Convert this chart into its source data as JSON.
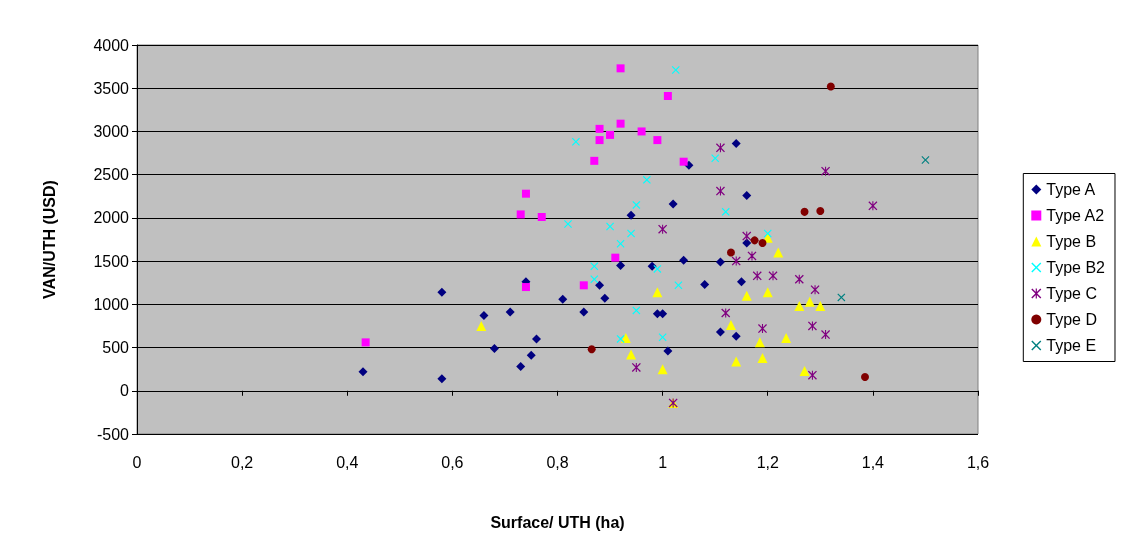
{
  "chart_data": {
    "type": "scatter",
    "xlabel": "Surface/ UTH (ha)",
    "ylabel": "VAN/UTH (USD)",
    "xlim": [
      0,
      1.6
    ],
    "ylim": [
      -500,
      4000
    ],
    "xticks": [
      0,
      {
        "value": 0.2,
        "label": "0,2"
      },
      {
        "value": 0.4,
        "label": "0,4"
      },
      {
        "value": 0.6,
        "label": "0,6"
      },
      {
        "value": 0.8,
        "label": "0,8"
      },
      1,
      {
        "value": 1.2,
        "label": "1,2"
      },
      {
        "value": 1.4,
        "label": "1,4"
      },
      {
        "value": 1.6,
        "label": "1,6"
      }
    ],
    "yticks": [
      -500,
      0,
      500,
      1000,
      1500,
      2000,
      2500,
      3000,
      3500,
      4000
    ],
    "grid": "y",
    "legend": "right",
    "series": [
      {
        "name": "Type A",
        "color": "#000080",
        "marker": "diamond",
        "x": [
          0.43,
          0.58,
          0.58,
          0.66,
          0.71,
          0.68,
          0.73,
          0.75,
          0.76,
          0.74,
          0.81,
          0.85,
          0.88,
          0.89,
          0.92,
          0.94,
          0.98,
          0.99,
          1.0,
          1.01,
          1.02,
          1.04,
          1.05,
          1.08,
          1.11,
          1.11,
          1.14,
          1.16,
          1.16,
          1.15,
          1.14
        ],
        "values": [
          220,
          140,
          1140,
          870,
          910,
          490,
          280,
          410,
          600,
          1260,
          1060,
          910,
          1220,
          1070,
          1450,
          2030,
          1440,
          890,
          890,
          460,
          2160,
          1510,
          2610,
          1230,
          1490,
          680,
          2860,
          2260,
          1710,
          1260,
          630
        ]
      },
      {
        "name": "Type A2",
        "color": "#ff00ff",
        "marker": "square",
        "x": [
          0.435,
          0.92,
          1.01,
          0.88,
          0.92,
          0.9,
          0.96,
          0.88,
          0.99,
          0.87,
          1.04,
          0.74,
          0.73,
          0.77,
          0.91,
          0.85,
          0.74
        ],
        "values": [
          560,
          3730,
          3410,
          3030,
          3090,
          2960,
          3000,
          2900,
          2900,
          2660,
          2650,
          2280,
          2040,
          2010,
          1540,
          1220,
          1200
        ]
      },
      {
        "name": "Type B",
        "color": "#ffff00",
        "marker": "triangle",
        "x": [
          0.655,
          0.99,
          0.93,
          0.94,
          1.0,
          1.02,
          1.13,
          1.16,
          1.2,
          1.2,
          1.22,
          1.185,
          1.14,
          1.19,
          1.235,
          1.26,
          1.28,
          1.3,
          1.27
        ],
        "values": [
          750,
          1140,
          610,
          420,
          250,
          -140,
          760,
          1100,
          1140,
          1770,
          1600,
          560,
          340,
          380,
          610,
          980,
          1030,
          980,
          230
        ]
      },
      {
        "name": "Type B2",
        "color": "#00ffff",
        "marker": "cross",
        "x": [
          1.025,
          0.835,
          0.97,
          0.95,
          0.82,
          0.9,
          0.94,
          0.92,
          0.87,
          0.87,
          0.99,
          1.03,
          0.95,
          0.92,
          1.0,
          1.1,
          1.12,
          1.2
        ],
        "values": [
          3710,
          2880,
          2440,
          2150,
          1930,
          1900,
          1820,
          1700,
          1440,
          1290,
          1410,
          1220,
          930,
          600,
          620,
          2690,
          2070,
          1820
        ]
      },
      {
        "name": "Type C",
        "color": "#800080",
        "marker": "star",
        "x": [
          1.0,
          0.95,
          1.02,
          1.11,
          1.11,
          1.31,
          1.4,
          1.16,
          1.17,
          1.14,
          1.18,
          1.21,
          1.26,
          1.29,
          1.12,
          1.19,
          1.285,
          1.31,
          1.285
        ],
        "values": [
          1870,
          270,
          -140,
          2810,
          2310,
          2540,
          2140,
          1790,
          1560,
          1500,
          1330,
          1330,
          1290,
          1170,
          900,
          720,
          750,
          650,
          180
        ]
      },
      {
        "name": "Type D",
        "color": "#800000",
        "marker": "circle",
        "x": [
          0.865,
          1.32,
          1.27,
          1.3,
          1.175,
          1.19,
          1.13,
          1.385
        ],
        "values": [
          480,
          3520,
          2070,
          2080,
          1740,
          1710,
          1600,
          160
        ]
      },
      {
        "name": "Type E",
        "color": "#008080",
        "marker": "cross",
        "x": [
          1.5,
          1.34
        ],
        "values": [
          2670,
          1080
        ]
      }
    ]
  }
}
